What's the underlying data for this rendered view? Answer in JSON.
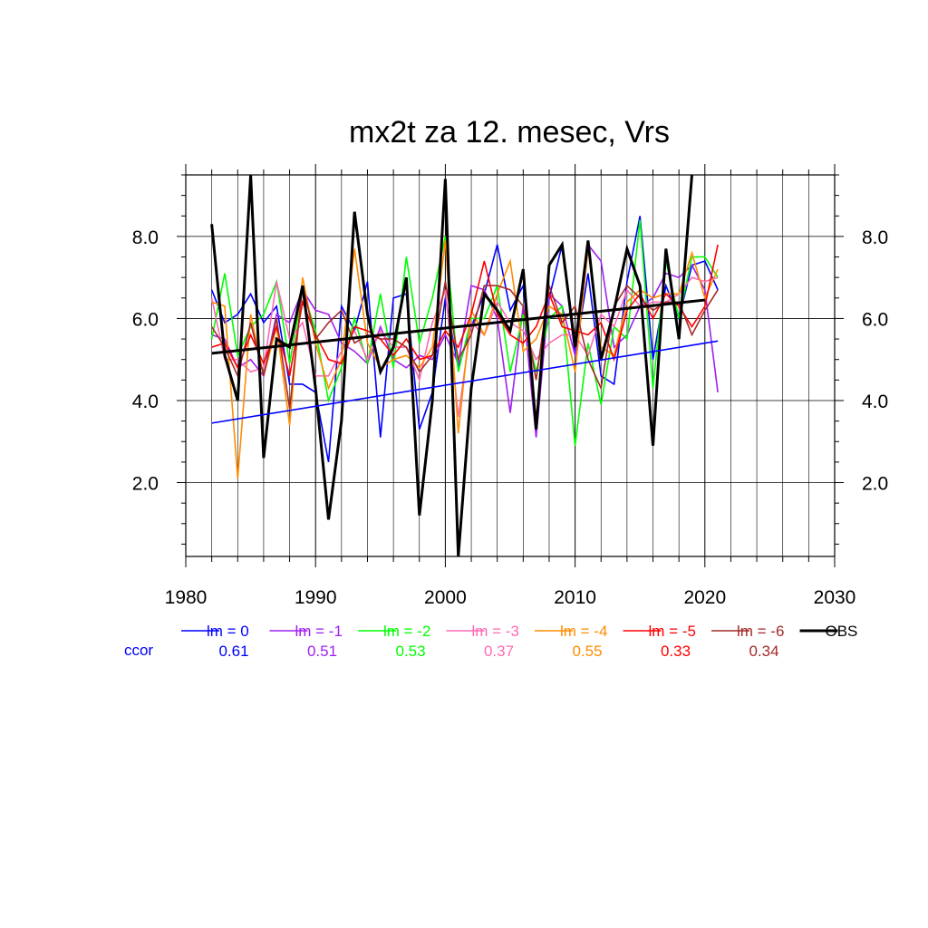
{
  "chart_data": {
    "type": "line",
    "title": "mx2t za 12. mesec, Vrs",
    "xlabel": "",
    "ylabel": "",
    "xlim": [
      1980,
      2030
    ],
    "ylim": [
      0.2,
      9.5
    ],
    "x_ticks": [
      1980,
      1990,
      2000,
      2010,
      2020,
      2030
    ],
    "y_ticks": [
      2.0,
      4.0,
      6.0,
      8.0
    ],
    "grid": true,
    "legend_position": "bottom",
    "ccor_label": "ccor",
    "x": [
      1982,
      1983,
      1984,
      1985,
      1986,
      1987,
      1988,
      1989,
      1990,
      1991,
      1992,
      1993,
      1994,
      1995,
      1996,
      1997,
      1998,
      1999,
      2000,
      2001,
      2002,
      2003,
      2004,
      2005,
      2006,
      2007,
      2008,
      2009,
      2010,
      2011,
      2012,
      2013,
      2014,
      2015,
      2016,
      2017,
      2018,
      2019,
      2020,
      2021
    ],
    "series": [
      {
        "name": "lm = 0",
        "ccor": "0.61",
        "color": "#0000ff",
        "width": 1.6,
        "values": [
          6.7,
          5.9,
          6.1,
          6.6,
          5.9,
          6.3,
          4.4,
          4.4,
          4.2,
          2.5,
          6.3,
          5.7,
          6.9,
          3.1,
          6.5,
          6.6,
          3.3,
          4.2,
          6.5,
          4.8,
          5.8,
          6.6,
          7.8,
          6.2,
          6.8,
          3.5,
          6.5,
          7.8,
          5.1,
          7.1,
          4.6,
          4.4,
          6.9,
          8.5,
          5.0,
          6.8,
          6.0,
          7.3,
          7.4,
          6.7
        ],
        "trend": [
          3.45,
          5.45
        ]
      },
      {
        "name": "lm = -1",
        "ccor": "0.51",
        "color": "#a020f0",
        "width": 1.6,
        "values": [
          5.6,
          5.5,
          4.8,
          5.0,
          4.6,
          6.1,
          5.9,
          6.7,
          6.2,
          6.1,
          5.4,
          5.2,
          4.9,
          5.8,
          5.0,
          4.8,
          5.1,
          5.0,
          5.6,
          4.9,
          6.8,
          6.7,
          6.0,
          3.7,
          6.3,
          3.1,
          6.6,
          6.3,
          5.1,
          7.8,
          7.4,
          5.3,
          5.6,
          6.3,
          6.5,
          7.1,
          7.0,
          7.3,
          6.7,
          4.2
        ]
      },
      {
        "name": "lm = -2",
        "ccor": "0.53",
        "color": "#00ff00",
        "width": 1.6,
        "values": [
          5.5,
          7.1,
          5.1,
          5.8,
          6.1,
          6.9,
          4.9,
          6.7,
          5.7,
          4.0,
          4.8,
          6.0,
          4.9,
          6.6,
          4.8,
          7.5,
          5.4,
          6.5,
          8.0,
          4.7,
          6.0,
          6.0,
          6.8,
          4.7,
          6.1,
          4.7,
          6.0,
          6.3,
          2.9,
          5.4,
          3.9,
          5.8,
          5.5,
          8.4,
          4.3,
          7.4,
          6.0,
          7.5,
          7.5,
          7.0
        ]
      },
      {
        "name": "lm = -3",
        "ccor": "0.37",
        "color": "#ff69b4",
        "width": 1.6,
        "values": [
          6.5,
          5.0,
          5.0,
          4.7,
          4.8,
          6.9,
          5.5,
          5.9,
          4.6,
          4.6,
          5.2,
          5.7,
          5.0,
          5.7,
          5.3,
          5.3,
          4.5,
          5.9,
          6.7,
          3.6,
          5.9,
          5.6,
          6.4,
          5.9,
          5.7,
          5.0,
          5.4,
          5.6,
          5.6,
          5.1,
          6.1,
          5.8,
          6.7,
          6.3,
          6.4,
          6.4,
          6.6,
          7.0,
          6.9,
          7.0
        ]
      },
      {
        "name": "lm = -4",
        "ccor": "0.55",
        "color": "#ff8c00",
        "width": 1.6,
        "values": [
          6.4,
          6.3,
          2.1,
          6.1,
          4.6,
          5.8,
          3.4,
          7.0,
          5.4,
          4.3,
          5.0,
          7.7,
          5.4,
          4.8,
          5.0,
          5.1,
          4.8,
          5.3,
          7.9,
          3.2,
          6.2,
          5.6,
          6.6,
          7.4,
          5.2,
          5.5,
          6.3,
          6.1,
          4.7,
          7.7,
          5.3,
          5.1,
          6.4,
          6.7,
          6.5,
          6.6,
          6.6,
          7.6,
          6.5,
          7.2
        ]
      },
      {
        "name": "lm = -5",
        "ccor": "0.33",
        "color": "#ff0000",
        "width": 1.6,
        "values": [
          5.3,
          5.4,
          4.8,
          5.6,
          4.9,
          5.8,
          4.6,
          6.4,
          5.6,
          5.0,
          4.9,
          5.8,
          5.7,
          5.5,
          5.1,
          5.5,
          5.0,
          5.1,
          5.7,
          5.3,
          6.1,
          7.4,
          6.1,
          5.6,
          5.4,
          5.8,
          6.6,
          5.8,
          5.7,
          5.6,
          5.9,
          5.0,
          6.2,
          6.6,
          6.0,
          6.6,
          6.3,
          5.8,
          6.3,
          7.8
        ]
      },
      {
        "name": "lm = -6",
        "ccor": "0.34",
        "color": "#a52a2a",
        "width": 1.6,
        "values": [
          5.8,
          5.3,
          4.6,
          5.9,
          4.6,
          6.0,
          3.8,
          6.8,
          5.5,
          5.9,
          6.2,
          5.4,
          5.6,
          5.5,
          5.5,
          5.3,
          4.7,
          5.1,
          6.9,
          5.0,
          5.6,
          6.8,
          6.8,
          6.7,
          6.3,
          4.5,
          6.8,
          5.9,
          6.3,
          5.0,
          4.3,
          6.3,
          6.8,
          6.5,
          6.2,
          6.4,
          6.4,
          5.6,
          6.2,
          6.7
        ]
      },
      {
        "name": "OBS",
        "ccor": "",
        "color": "#000000",
        "width": 3,
        "values": [
          8.3,
          5.1,
          4.0,
          9.5,
          2.6,
          5.5,
          5.3,
          6.8,
          4.3,
          1.1,
          3.5,
          8.6,
          6.1,
          4.7,
          5.3,
          7.0,
          1.2,
          4.0,
          9.4,
          0.2,
          4.3,
          6.6,
          6.2,
          5.7,
          7.2,
          3.3,
          7.3,
          7.8,
          5.3,
          7.9,
          5.0,
          6.2,
          7.7,
          6.8,
          2.9,
          7.7,
          5.5,
          9.5,
          null,
          null
        ],
        "trend": [
          5.15,
          6.45
        ]
      }
    ]
  }
}
